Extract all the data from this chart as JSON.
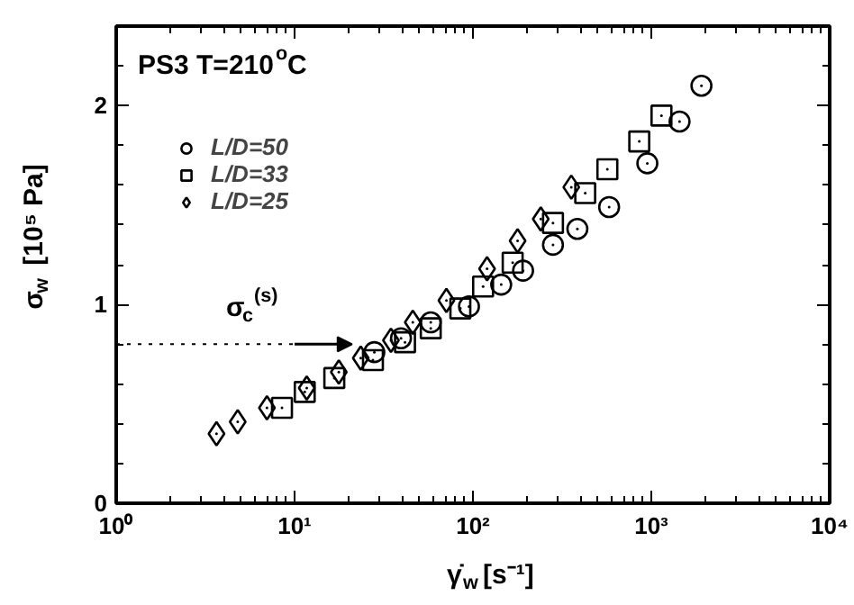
{
  "chart_data": {
    "type": "scatter",
    "title": "PS3 T=210$^{o}$C",
    "xlabel": "γ̇$_{w}$ [s⁻¹]",
    "ylabel": "σ$_{w}$  [10⁵ Pa]",
    "log": "x",
    "grid": false,
    "legend": "top left",
    "xlim": [
      1,
      10000
    ],
    "ylim": [
      0,
      2.4
    ],
    "xticks": [
      {
        "value": 1,
        "label": "10⁰"
      },
      {
        "value": 10,
        "label": "10¹"
      },
      {
        "value": 100,
        "label": "10²"
      },
      {
        "value": 1000,
        "label": "10³"
      },
      {
        "value": 10000,
        "label": "10⁴"
      }
    ],
    "yticks": [
      0,
      1,
      2
    ],
    "annotations": [
      {
        "text": "σ$_{c}$$^{(s)}$",
        "x": 21,
        "y": 0.8
      }
    ],
    "series": [
      {
        "name": "L/D=50",
        "color": "#000000",
        "marker": "circle",
        "x": [
          28,
          39.5,
          58,
          95,
          144,
          191,
          281,
          385,
          580,
          950,
          1440,
          1910
        ],
        "values": [
          0.76,
          0.83,
          0.91,
          0.99,
          1.1,
          1.17,
          1.3,
          1.38,
          1.49,
          1.71,
          1.92,
          2.1
        ]
      },
      {
        "name": "L/D=33",
        "color": "#000000",
        "marker": "square",
        "x": [
          8.5,
          11.4,
          16.7,
          27.5,
          41.6,
          58,
          85,
          114,
          167,
          281,
          426,
          567,
          856,
          1140
        ],
        "values": [
          0.48,
          0.56,
          0.63,
          0.72,
          0.81,
          0.88,
          0.98,
          1.09,
          1.21,
          1.41,
          1.56,
          1.68,
          1.82,
          1.95
        ]
      },
      {
        "name": "L/D=25",
        "color": "#000000",
        "marker": "diamond",
        "x": [
          3.65,
          4.8,
          7.0,
          11.7,
          17.7,
          23.5,
          34.7,
          46,
          71,
          120,
          178,
          240,
          356
        ],
        "values": [
          0.35,
          0.41,
          0.48,
          0.58,
          0.66,
          0.73,
          0.82,
          0.91,
          1.02,
          1.18,
          1.32,
          1.43,
          1.59
        ]
      },
      {
        "type": "line",
        "color": "#000000",
        "line_style": "dotted",
        "marker": "none",
        "x": [
          1,
          10
        ],
        "values": [
          0.8,
          0.8
        ]
      }
    ]
  }
}
